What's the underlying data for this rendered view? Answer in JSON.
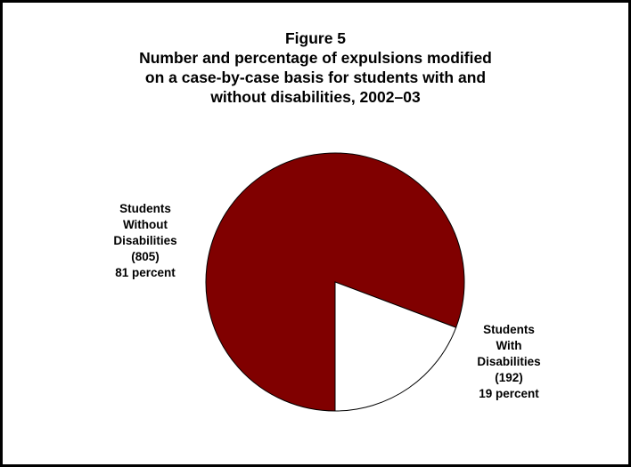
{
  "chart_data": {
    "type": "pie",
    "title": "Figure 5",
    "subtitle_lines": [
      "Number and percentage of expulsions modified",
      "on a case-by-case basis for students with and",
      "without disabilities, 2002–03"
    ],
    "slices": [
      {
        "name_lines": [
          "Students",
          "Without",
          "Disabilities"
        ],
        "count_label": "(805)",
        "percent_label": "81 percent",
        "value": 805,
        "percent": 81,
        "color": "#800000"
      },
      {
        "name_lines": [
          "Students",
          "With",
          "Disabilities"
        ],
        "count_label": "(192)",
        "percent_label": "19 percent",
        "value": 192,
        "percent": 19,
        "color": "#ffffff"
      }
    ]
  }
}
